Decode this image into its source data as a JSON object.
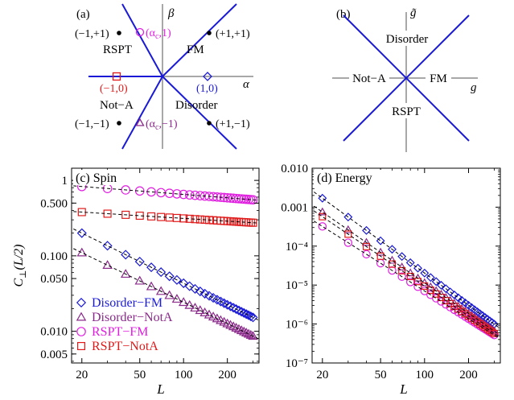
{
  "colors": {
    "blue": "#1a1ad6",
    "purple": "#8a2a8a",
    "magenta": "#e01ee0",
    "red": "#e01a1a",
    "black": "#000000",
    "gray": "#8c8c8c"
  },
  "panel_a": {
    "label": "(a)",
    "axis_beta": "β",
    "axis_alpha": "α",
    "regions": {
      "rspt": "RSPT",
      "fm": "FM",
      "nota": "Not−A",
      "disorder": "Disorder"
    },
    "points": {
      "mp": "(−1,+1)",
      "pp": "(+1,+1)",
      "mm": "(−1,−1)",
      "pm": "(+1,−1)",
      "m0": "(−1,0)",
      "p0": "(1,0)",
      "ac1": "(α",
      "ac1_sub": "c",
      "ac1_end": ",1)",
      "acm1": "(α",
      "acm1_sub": "c",
      "acm1_end": ",−1)"
    }
  },
  "panel_b": {
    "label": "(b)",
    "axis_g": "g",
    "axis_gtilde": "g̃",
    "regions": {
      "disorder": "Disorder",
      "nota": "Not−A",
      "fm": "FM",
      "rspt": "RSPT"
    }
  },
  "chart_data": [
    {
      "type": "scatter",
      "panel": "(c)",
      "title": "Spin",
      "xlabel": "L",
      "ylabel_main": "C",
      "ylabel_sub": "⊥",
      "ylabel_arg": "(L/2)",
      "xscale": "log",
      "yscale": "log",
      "xlim": [
        17,
        330
      ],
      "ylim": [
        0.0038,
        1.45
      ],
      "xticks": [
        20,
        50,
        100,
        200
      ],
      "xtick_labels": [
        "20",
        "50",
        "100",
        "200"
      ],
      "yticks": [
        0.005,
        0.01,
        0.05,
        0.1,
        0.5,
        1
      ],
      "ytick_labels": [
        "0.005",
        "0.010",
        "0.050",
        "0.100",
        "0.500",
        "1"
      ],
      "legend_position": "bottom-left",
      "series": [
        {
          "name": "Disorder−FM",
          "marker": "diamond",
          "color": "#1a1ad6",
          "c": 0.2,
          "p": 0.95
        },
        {
          "name": "Disorder−NotA",
          "marker": "triangle",
          "color": "#8a2a8a",
          "c": 0.11,
          "p": 0.94
        },
        {
          "name": "RSPT−FM",
          "marker": "circle",
          "color": "#e01ee0",
          "c": 0.83,
          "p": 0.15
        },
        {
          "name": "RSPT−NotA",
          "marker": "square",
          "color": "#e01a1a",
          "c": 0.38,
          "p": 0.12
        }
      ]
    },
    {
      "type": "scatter",
      "panel": "(d)",
      "title": "Energy",
      "xlabel": "L",
      "xscale": "log",
      "yscale": "log",
      "xlim": [
        17,
        330
      ],
      "ylim": [
        1e-07,
        0.01
      ],
      "xticks": [
        20,
        50,
        100,
        200
      ],
      "xtick_labels": [
        "20",
        "50",
        "100",
        "200"
      ],
      "yticks": [
        1e-07,
        1e-06,
        1e-05,
        0.0001,
        0.001,
        0.01
      ],
      "ytick_labels": [
        "10⁻⁷",
        "10⁻⁶",
        "10⁻⁵",
        "10⁻⁴",
        "0.001",
        "0.010"
      ],
      "series": [
        {
          "name": "Disorder−FM",
          "marker": "diamond",
          "color": "#1a1ad6",
          "c": 0.0017,
          "p": 2.75
        },
        {
          "name": "Disorder−NotA",
          "marker": "triangle",
          "color": "#8a2a8a",
          "c": 0.00075,
          "p": 2.6
        },
        {
          "name": "RSPT−FM",
          "marker": "circle",
          "color": "#e01ee0",
          "c": 0.00032,
          "p": 2.37
        },
        {
          "name": "RSPT−NotA",
          "marker": "square",
          "color": "#e01a1a",
          "c": 0.00057,
          "p": 2.55
        }
      ]
    }
  ]
}
